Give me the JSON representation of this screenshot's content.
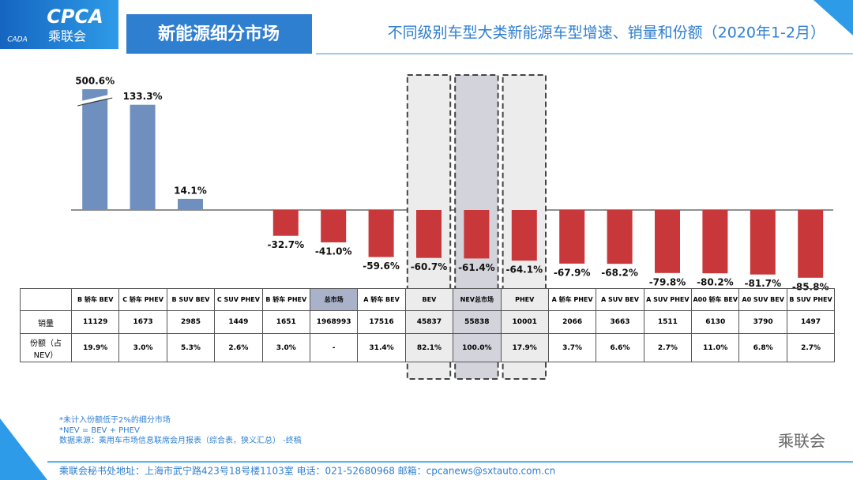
{
  "header": {
    "logo": "CPCA",
    "logo_sub": "乘联会",
    "logo_mark": "CADA",
    "title": "新能源细分市场",
    "subtitle": "不同级别车型大类新能源车型增速、销量和份额（2020年1-2月）"
  },
  "chart_data": {
    "type": "bar",
    "categories": [
      "B 轿车 BEV",
      "C 轿车 PHEV",
      "B SUV BEV",
      "C SUV PHEV",
      "B 轿车 PHEV",
      "总市场",
      "A 轿车 BEV",
      "BEV",
      "NEV总市场",
      "PHEV",
      "A 轿车 PHEV",
      "A SUV BEV",
      "A SUV PHEV",
      "A00 轿车 BEV",
      "A0 SUV BEV",
      "B SUV PHEV"
    ],
    "values": [
      500.6,
      133.3,
      14.1,
      null,
      -32.7,
      -41.0,
      -59.6,
      -60.7,
      -61.4,
      -64.1,
      -67.9,
      -68.2,
      -79.8,
      -80.2,
      -81.7,
      -85.8
    ],
    "value_labels": [
      "500.6%",
      "133.3%",
      "14.1%",
      null,
      "-32.7%",
      "-41.0%",
      "-59.6%",
      "-60.7%",
      "-61.4%",
      "-64.1%",
      "-67.9%",
      "-68.2%",
      "-79.8%",
      "-80.2%",
      "-81.7%",
      "-85.8%"
    ],
    "positive_color": "#6f8fbe",
    "negative_color": "#c8373a",
    "ylim": [
      -100,
      153
    ]
  },
  "table": {
    "rows": [
      [
        "销量",
        11129,
        1673,
        2985,
        1449,
        1651,
        1968993,
        17516,
        45837,
        55838,
        10001,
        2066,
        3663,
        1511,
        6130,
        3790,
        1497
      ],
      [
        "份额（占NEV）",
        "19.9%",
        "3.0%",
        "5.3%",
        "2.6%",
        "3.0%",
        "-",
        "31.4%",
        "82.1%",
        "100.0%",
        "17.9%",
        "3.7%",
        "6.6%",
        "2.7%",
        "11.0%",
        "6.8%",
        "2.7%"
      ]
    ]
  },
  "notes": [
    "*未计入份额低于2%的细分市场",
    "*NEV = BEV + PHEV",
    "数据来源：乘用车市场信息联席会月报表（综合表，狭义汇总）  -终稿"
  ],
  "watermark": "乘联会",
  "footer": "乘联会秘书处地址：上海市武宁路423号18号楼1103室  电话：021-52680968  邮箱：cpcanews@sxtauto.com.cn"
}
